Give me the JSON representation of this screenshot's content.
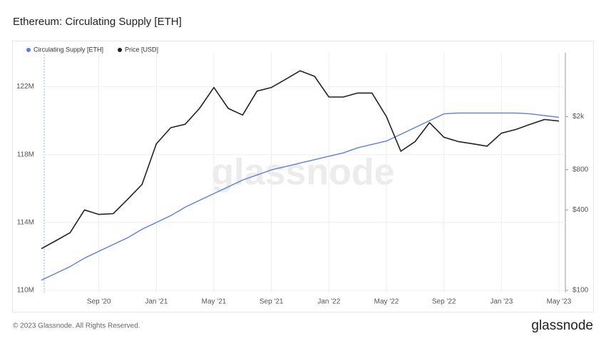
{
  "chart_data": {
    "type": "line",
    "title": "Ethereum: Circulating Supply [ETH]",
    "watermark": "glassnode",
    "footer": "© 2023 Glassnode. All Rights Reserved.",
    "logo": "glassnode",
    "x": [
      "2020-05",
      "2020-06",
      "2020-07",
      "2020-08",
      "2020-09",
      "2020-10",
      "2020-11",
      "2020-12",
      "2021-01",
      "2021-02",
      "2021-03",
      "2021-04",
      "2021-05",
      "2021-06",
      "2021-07",
      "2021-08",
      "2021-09",
      "2021-10",
      "2021-11",
      "2021-12",
      "2022-01",
      "2022-02",
      "2022-03",
      "2022-04",
      "2022-05",
      "2022-06",
      "2022-07",
      "2022-08",
      "2022-09",
      "2022-10",
      "2022-11",
      "2022-12",
      "2023-01",
      "2023-02",
      "2023-03",
      "2023-04",
      "2023-05"
    ],
    "xlim": [
      "2020-05",
      "2023-05"
    ],
    "xticks": [
      {
        "value": "2020-09",
        "label": "Sep '20"
      },
      {
        "value": "2021-01",
        "label": "Jan '21"
      },
      {
        "value": "2021-05",
        "label": "May '21"
      },
      {
        "value": "2021-09",
        "label": "Sep '21"
      },
      {
        "value": "2022-01",
        "label": "Jan '22"
      },
      {
        "value": "2022-05",
        "label": "May '22"
      },
      {
        "value": "2022-09",
        "label": "Sep '22"
      },
      {
        "value": "2023-01",
        "label": "Jan '23"
      },
      {
        "value": "2023-05",
        "label": "May '23"
      }
    ],
    "ylim": [
      110000000,
      124000000
    ],
    "yticks": [
      {
        "value": 110000000,
        "label": "110M"
      },
      {
        "value": 114000000,
        "label": "114M"
      },
      {
        "value": 118000000,
        "label": "118M"
      },
      {
        "value": 122000000,
        "label": "122M"
      }
    ],
    "y2lim": [
      100,
      6000
    ],
    "y2scale": "log",
    "y2ticks": [
      {
        "value": 100,
        "label": "$100"
      },
      {
        "value": 400,
        "label": "$400"
      },
      {
        "value": 800,
        "label": "$800"
      },
      {
        "value": 2000,
        "label": "$2k"
      }
    ],
    "grid": true,
    "legend": "top-left",
    "series": [
      {
        "name": "Circulating Supply [ETH]",
        "color": "#5b7fe0",
        "axis": "y",
        "values": [
          110600000,
          111000000,
          111400000,
          111900000,
          112300000,
          112700000,
          113100000,
          113600000,
          114000000,
          114400000,
          114900000,
          115300000,
          115700000,
          116100000,
          116500000,
          116800000,
          117100000,
          117300000,
          117500000,
          117700000,
          117900000,
          118100000,
          118400000,
          118600000,
          118800000,
          119200000,
          119600000,
          120000000,
          120400000,
          120450000,
          120450000,
          120450000,
          120450000,
          120450000,
          120400000,
          120300000,
          120200000
        ]
      },
      {
        "name": "Price [USD]",
        "color": "#222222",
        "axis": "y2",
        "values": [
          205,
          235,
          270,
          400,
          370,
          375,
          480,
          620,
          1250,
          1650,
          1750,
          2300,
          3300,
          2300,
          2050,
          3100,
          3300,
          3800,
          4400,
          4000,
          2800,
          2800,
          3000,
          3000,
          2000,
          1100,
          1300,
          1800,
          1400,
          1300,
          1250,
          1200,
          1500,
          1600,
          1750,
          1900,
          1850
        ]
      }
    ]
  }
}
